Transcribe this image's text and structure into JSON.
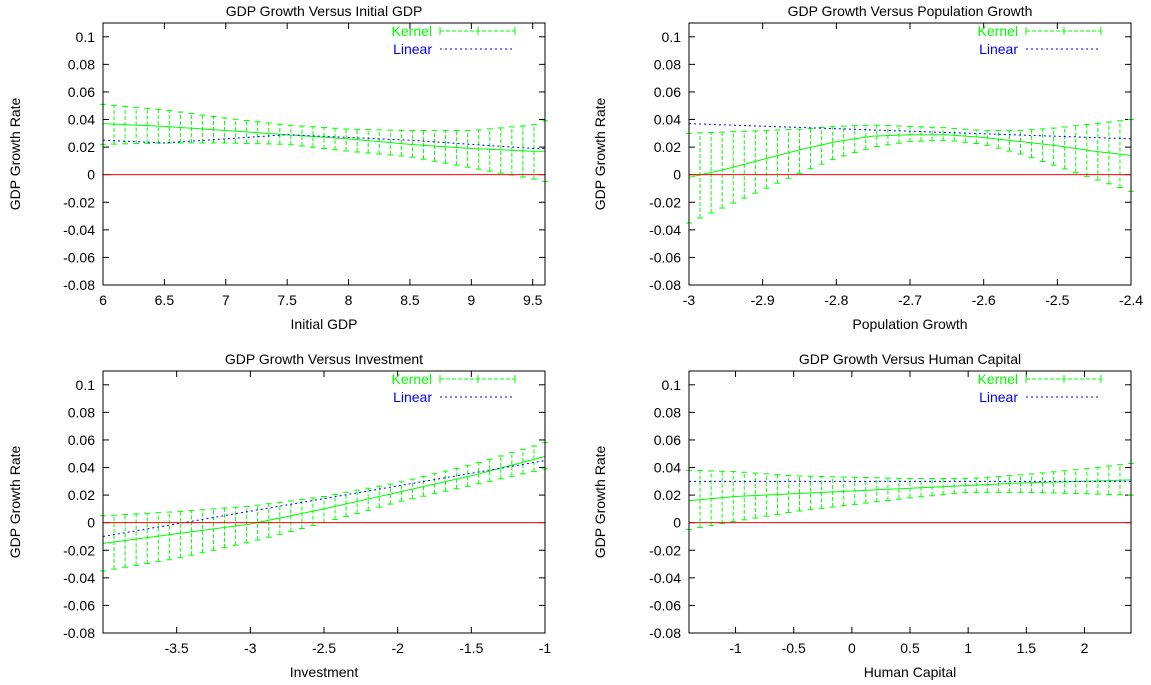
{
  "chart_data": [
    {
      "type": "line",
      "title": "GDP Growth Versus Initial GDP",
      "xlabel": "Initial GDP",
      "ylabel": "GDP Growth Rate",
      "xlim": [
        6,
        9.6
      ],
      "ylim": [
        -0.08,
        0.11
      ],
      "xticks": [
        "6",
        "6.5",
        "7",
        "7.5",
        "8",
        "8.5",
        "9",
        "9.5"
      ],
      "yticks": [
        "-0.08",
        "-0.06",
        "-0.04",
        "-0.02",
        "0",
        "0.02",
        "0.04",
        "0.06",
        "0.08",
        "0.1"
      ],
      "legend_position": "top-right",
      "series": [
        {
          "name": "Kernel",
          "color": "#00ff00",
          "style": "line with error bars",
          "x": [
            6.0,
            6.5,
            7.0,
            7.5,
            8.0,
            8.5,
            9.0,
            9.5,
            9.6
          ],
          "y": [
            0.037,
            0.035,
            0.032,
            0.029,
            0.026,
            0.022,
            0.019,
            0.017,
            0.017
          ],
          "lower": [
            0.022,
            0.023,
            0.023,
            0.022,
            0.017,
            0.013,
            0.005,
            -0.003,
            -0.005
          ],
          "upper": [
            0.051,
            0.047,
            0.041,
            0.036,
            0.033,
            0.032,
            0.032,
            0.036,
            0.039
          ]
        },
        {
          "name": "Linear",
          "color": "#0000ff",
          "style": "dotted",
          "x": [
            6.0,
            6.5,
            7.0,
            7.5,
            8.0,
            8.5,
            9.0,
            9.5,
            9.6
          ],
          "y": [
            0.025,
            0.023,
            0.026,
            0.029,
            0.027,
            0.025,
            0.022,
            0.019,
            0.019
          ]
        },
        {
          "name": "",
          "color": "#ff0000",
          "style": "solid",
          "x": [
            6.0,
            9.6
          ],
          "y": [
            0,
            0
          ]
        }
      ]
    },
    {
      "type": "line",
      "title": "GDP Growth Versus Population Growth",
      "xlabel": "Population Growth",
      "ylabel": "GDP Growth Rate",
      "xlim": [
        -3.0,
        -2.4
      ],
      "ylim": [
        -0.08,
        0.11
      ],
      "xticks": [
        "-3",
        "-2.9",
        "-2.8",
        "-2.7",
        "-2.6",
        "-2.5",
        "-2.4"
      ],
      "yticks": [
        "-0.08",
        "-0.06",
        "-0.04",
        "-0.02",
        "0",
        "0.02",
        "0.04",
        "0.06",
        "0.08",
        "0.1"
      ],
      "legend_position": "top-right",
      "series": [
        {
          "name": "Kernel",
          "color": "#00ff00",
          "style": "line with error bars",
          "x": [
            -3.0,
            -2.95,
            -2.9,
            -2.85,
            -2.8,
            -2.75,
            -2.7,
            -2.65,
            -2.6,
            -2.55,
            -2.5,
            -2.45,
            -2.4
          ],
          "y": [
            -0.002,
            0.004,
            0.011,
            0.018,
            0.024,
            0.028,
            0.029,
            0.029,
            0.027,
            0.024,
            0.021,
            0.017,
            0.014
          ],
          "lower": [
            -0.035,
            -0.023,
            -0.011,
            0.001,
            0.012,
            0.02,
            0.024,
            0.025,
            0.022,
            0.015,
            0.006,
            -0.003,
            -0.012
          ],
          "upper": [
            0.03,
            0.031,
            0.032,
            0.033,
            0.035,
            0.036,
            0.035,
            0.034,
            0.032,
            0.032,
            0.034,
            0.037,
            0.04
          ]
        },
        {
          "name": "Linear",
          "color": "#0000ff",
          "style": "dotted",
          "x": [
            -3.0,
            -2.4
          ],
          "y": [
            0.037,
            0.026
          ]
        },
        {
          "name": "",
          "color": "#ff0000",
          "style": "solid",
          "x": [
            -3.0,
            -2.4
          ],
          "y": [
            0,
            0
          ]
        }
      ]
    },
    {
      "type": "line",
      "title": "GDP Growth Versus Investment",
      "xlabel": "Investment",
      "ylabel": "GDP Growth Rate",
      "xlim": [
        -4.0,
        -1.0
      ],
      "ylim": [
        -0.08,
        0.11
      ],
      "xticks": [
        "-3.5",
        "-3",
        "-2.5",
        "-2",
        "-1.5",
        "-1"
      ],
      "yticks": [
        "-0.08",
        "-0.06",
        "-0.04",
        "-0.02",
        "0",
        "0.02",
        "0.04",
        "0.06",
        "0.08",
        "0.1"
      ],
      "legend_position": "top-right",
      "series": [
        {
          "name": "Kernel",
          "color": "#00ff00",
          "style": "line with error bars",
          "x": [
            -4.0,
            -3.5,
            -3.0,
            -2.5,
            -2.0,
            -1.5,
            -1.0
          ],
          "y": [
            -0.015,
            -0.008,
            -0.001,
            0.01,
            0.022,
            0.034,
            0.048
          ],
          "lower": [
            -0.035,
            -0.026,
            -0.014,
            0.0,
            0.015,
            0.027,
            0.039
          ],
          "upper": [
            0.005,
            0.008,
            0.012,
            0.019,
            0.029,
            0.042,
            0.058
          ]
        },
        {
          "name": "Linear",
          "color": "#0000ff",
          "style": "dotted",
          "x": [
            -4.0,
            -1.0
          ],
          "y": [
            -0.01,
            0.045
          ]
        },
        {
          "name": "",
          "color": "#ff0000",
          "style": "solid",
          "x": [
            -4.0,
            -1.0
          ],
          "y": [
            0,
            0
          ]
        }
      ]
    },
    {
      "type": "line",
      "title": "GDP Growth Versus Human Capital",
      "xlabel": "Human Capital",
      "ylabel": "GDP Growth Rate",
      "xlim": [
        -1.4,
        2.4
      ],
      "ylim": [
        -0.08,
        0.11
      ],
      "xticks": [
        "-1",
        "-0.5",
        "0",
        "0.5",
        "1",
        "1.5",
        "2"
      ],
      "yticks": [
        "-0.08",
        "-0.06",
        "-0.04",
        "-0.02",
        "0",
        "0.02",
        "0.04",
        "0.06",
        "0.08",
        "0.1"
      ],
      "legend_position": "top-right",
      "series": [
        {
          "name": "Kernel",
          "color": "#00ff00",
          "style": "line with error bars",
          "x": [
            -1.4,
            -1.0,
            -0.5,
            0.0,
            0.5,
            1.0,
            1.5,
            2.0,
            2.4
          ],
          "y": [
            0.016,
            0.019,
            0.021,
            0.023,
            0.025,
            0.027,
            0.029,
            0.03,
            0.031
          ],
          "lower": [
            -0.005,
            0.001,
            0.008,
            0.013,
            0.018,
            0.022,
            0.022,
            0.021,
            0.02
          ],
          "upper": [
            0.038,
            0.037,
            0.034,
            0.033,
            0.032,
            0.032,
            0.035,
            0.039,
            0.043
          ]
        },
        {
          "name": "Linear",
          "color": "#0000ff",
          "style": "dotted",
          "x": [
            -1.4,
            2.4
          ],
          "y": [
            0.03,
            0.03
          ]
        },
        {
          "name": "",
          "color": "#ff0000",
          "style": "solid",
          "x": [
            -1.4,
            2.4
          ],
          "y": [
            0,
            0
          ]
        }
      ]
    }
  ]
}
